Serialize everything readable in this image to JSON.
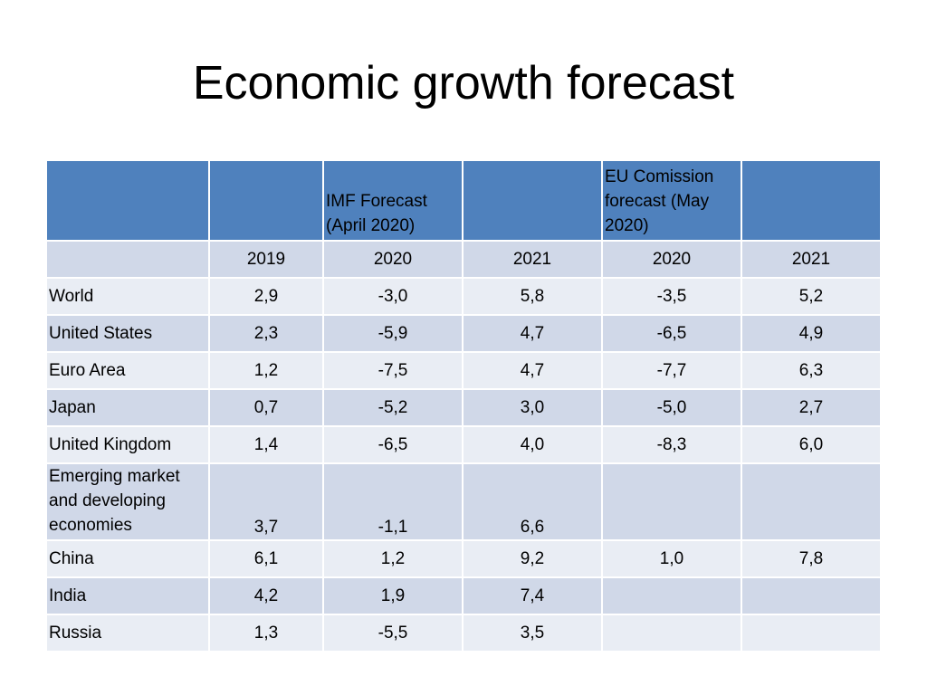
{
  "title": "Economic growth forecast",
  "header": {
    "imf_label": "IMF Forecast (April 2020)",
    "eu_label": "EU Comission forecast (May 2020)"
  },
  "years": [
    "2019",
    "2020",
    "2021",
    "2020",
    "2021"
  ],
  "rows": [
    {
      "label": "World",
      "values": [
        "2,9",
        "-3,0",
        "5,8",
        "-3,5",
        "5,2"
      ]
    },
    {
      "label": "United States",
      "values": [
        "2,3",
        "-5,9",
        "4,7",
        "-6,5",
        "4,9"
      ]
    },
    {
      "label": "Euro Area",
      "values": [
        "1,2",
        "-7,5",
        "4,7",
        "-7,7",
        "6,3"
      ]
    },
    {
      "label": "Japan",
      "values": [
        "0,7",
        "-5,2",
        "3,0",
        "-5,0",
        "2,7"
      ]
    },
    {
      "label": "United Kingdom",
      "values": [
        "1,4",
        "-6,5",
        "4,0",
        "-8,3",
        "6,0"
      ]
    },
    {
      "label": "Emerging market and developing economies",
      "values": [
        "3,7",
        "-1,1",
        "6,6",
        "",
        ""
      ]
    },
    {
      "label": "China",
      "values": [
        "6,1",
        "1,2",
        "9,2",
        "1,0",
        "7,8"
      ]
    },
    {
      "label": "India",
      "values": [
        "4,2",
        "1,9",
        "7,4",
        "",
        ""
      ]
    },
    {
      "label": "Russia",
      "values": [
        "1,3",
        "-5,5",
        "3,5",
        "",
        ""
      ]
    }
  ]
}
